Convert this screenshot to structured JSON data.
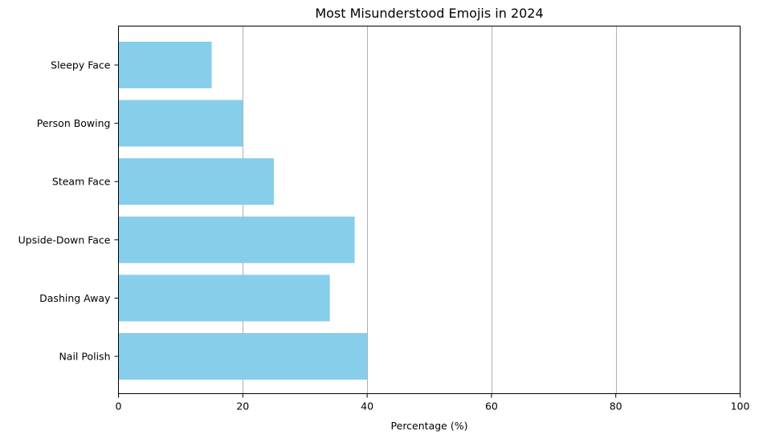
{
  "chart_data": {
    "type": "bar",
    "orientation": "horizontal",
    "title": "Most Misunderstood Emojis in 2024",
    "xlabel": "Percentage (%)",
    "ylabel": "",
    "categories": [
      "Nail Polish",
      "Dashing Away",
      "Upside-Down Face",
      "Steam Face",
      "Person Bowing",
      "Sleepy Face"
    ],
    "values": [
      40,
      34,
      38,
      25,
      20,
      15
    ],
    "xlim": [
      0,
      100
    ],
    "xticks": [
      0,
      20,
      40,
      60,
      80,
      100
    ],
    "grid": "x-axis vertical lines",
    "bar_color": "#87ceeb"
  }
}
